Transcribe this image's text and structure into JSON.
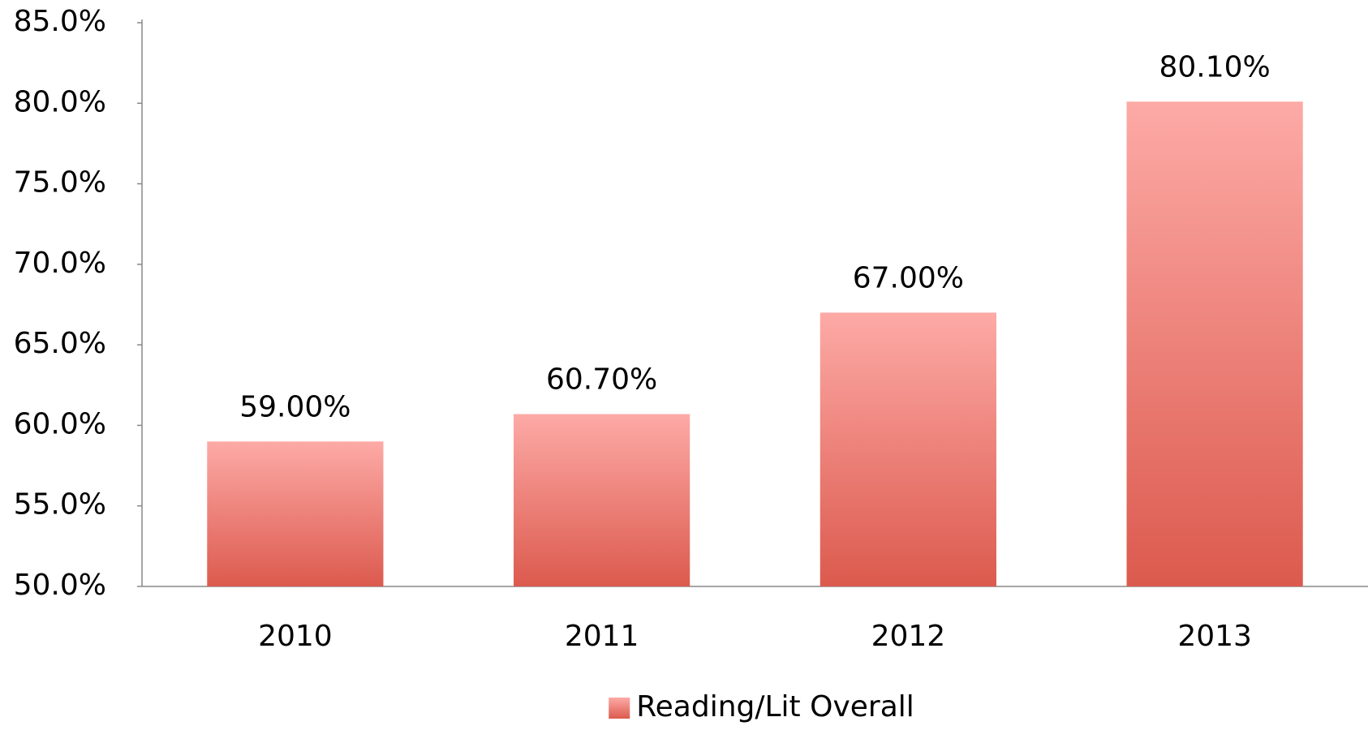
{
  "chart_data": {
    "type": "bar",
    "categories": [
      "2010",
      "2011",
      "2012",
      "2013"
    ],
    "series": [
      {
        "name": "Reading/Lit Overall",
        "color": [
          "#fdaaa6",
          "#dc5a4e"
        ],
        "values": [
          59.0,
          60.7,
          67.0,
          80.1
        ],
        "value_labels": [
          "59.00%",
          "60.70%",
          "67.00%",
          "80.10%"
        ]
      }
    ],
    "ylim": [
      50,
      85
    ],
    "yticks": [
      {
        "value": 50,
        "label": "50.0%"
      },
      {
        "value": 55,
        "label": "55.0%"
      },
      {
        "value": 60,
        "label": "60.0%"
      },
      {
        "value": 65,
        "label": "65.0%"
      },
      {
        "value": 70,
        "label": "70.0%"
      },
      {
        "value": 75,
        "label": "75.0%"
      },
      {
        "value": 80,
        "label": "80.0%"
      },
      {
        "value": 85,
        "label": "85.0%"
      }
    ],
    "grid": false,
    "legend": "bottom"
  }
}
